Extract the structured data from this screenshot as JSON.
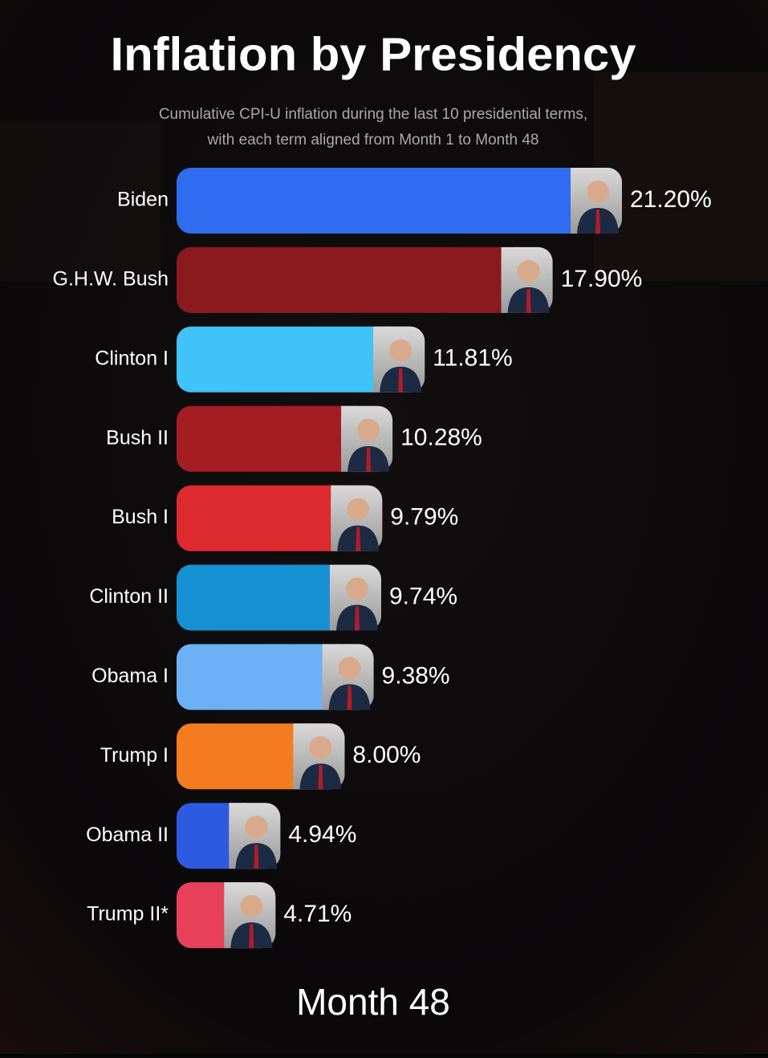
{
  "chart_data": {
    "type": "bar",
    "orientation": "horizontal",
    "title": "Inflation by Presidency",
    "subtitle": [
      "Cumulative CPI-U inflation during the last 10 presidential terms,",
      "with each term aligned from Month 1 to Month 48"
    ],
    "categories": [
      "Biden",
      "G.H.W. Bush",
      "Clinton I",
      "Bush II",
      "Bush I",
      "Clinton II",
      "Obama I",
      "Trump I",
      "Obama II",
      "Trump II*"
    ],
    "values": [
      21.2,
      17.9,
      11.81,
      10.28,
      9.79,
      9.74,
      9.38,
      8.0,
      4.94,
      4.71
    ],
    "value_labels": [
      "21.20%",
      "17.90%",
      "11.81%",
      "10.28%",
      "9.79%",
      "9.74%",
      "9.38%",
      "8.00%",
      "4.94%",
      "4.71%"
    ],
    "colors": [
      "#2f6cf0",
      "#8a1a1e",
      "#3fc3f8",
      "#a31d22",
      "#dc2a2f",
      "#1690d2",
      "#6cb0f6",
      "#f47b20",
      "#2c5ae0",
      "#e6405a"
    ],
    "annotation": "Month 48"
  }
}
